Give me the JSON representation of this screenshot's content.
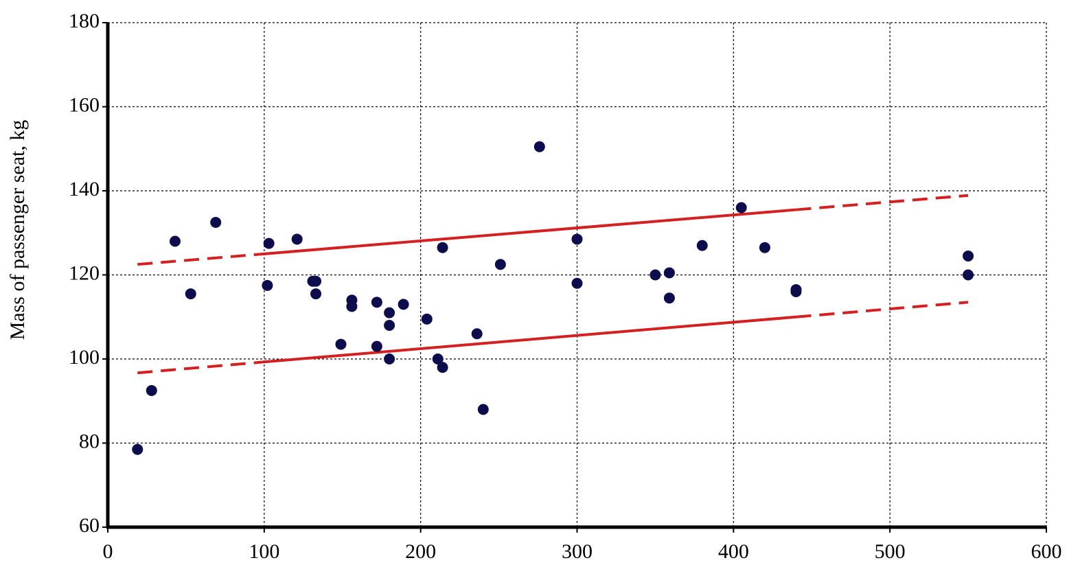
{
  "chart_data": {
    "type": "scatter",
    "ylabel": "Mass of passenger seat, kg",
    "xlim": [
      0,
      600
    ],
    "xticks": [
      0,
      100,
      200,
      300,
      400,
      500,
      600
    ],
    "ylim": [
      60,
      180
    ],
    "yticks": [
      60,
      80,
      100,
      120,
      140,
      160,
      180
    ],
    "grid": true,
    "series": [
      {
        "type": "scatter",
        "color": "#0d0d4d",
        "x": [
          19,
          28,
          43,
          53,
          69,
          102,
          103,
          121,
          131,
          133,
          133,
          149,
          156,
          156,
          172,
          172,
          180,
          180,
          180,
          189,
          204,
          211,
          214,
          214,
          236,
          240,
          251,
          276,
          300,
          300,
          350,
          359,
          359,
          380,
          405,
          420,
          440,
          440,
          550,
          550
        ],
        "values": [
          78.5,
          92.5,
          128,
          115.5,
          132.5,
          117.5,
          127.5,
          128.5,
          118.5,
          118.5,
          115.5,
          103.5,
          114,
          112.5,
          113.5,
          103,
          111,
          108,
          100,
          113,
          109.5,
          100,
          98,
          126.5,
          106,
          88,
          122.5,
          150.5,
          128.5,
          118,
          120,
          120.5,
          114.5,
          127,
          136,
          126.5,
          116.5,
          116,
          124.5,
          120
        ]
      },
      {
        "type": "line",
        "color": "#d42020",
        "segment_styles": [
          "dashed",
          "solid",
          "dashed"
        ],
        "x": [
          19,
          100,
          440,
          550
        ],
        "values": [
          122.5,
          125,
          135.5,
          138.9
        ]
      },
      {
        "type": "line",
        "color": "#d42020",
        "segment_styles": [
          "dashed",
          "solid",
          "dashed"
        ],
        "x": [
          19,
          100,
          440,
          550
        ],
        "values": [
          96.7,
          99.3,
          110,
          113.5
        ]
      }
    ]
  }
}
